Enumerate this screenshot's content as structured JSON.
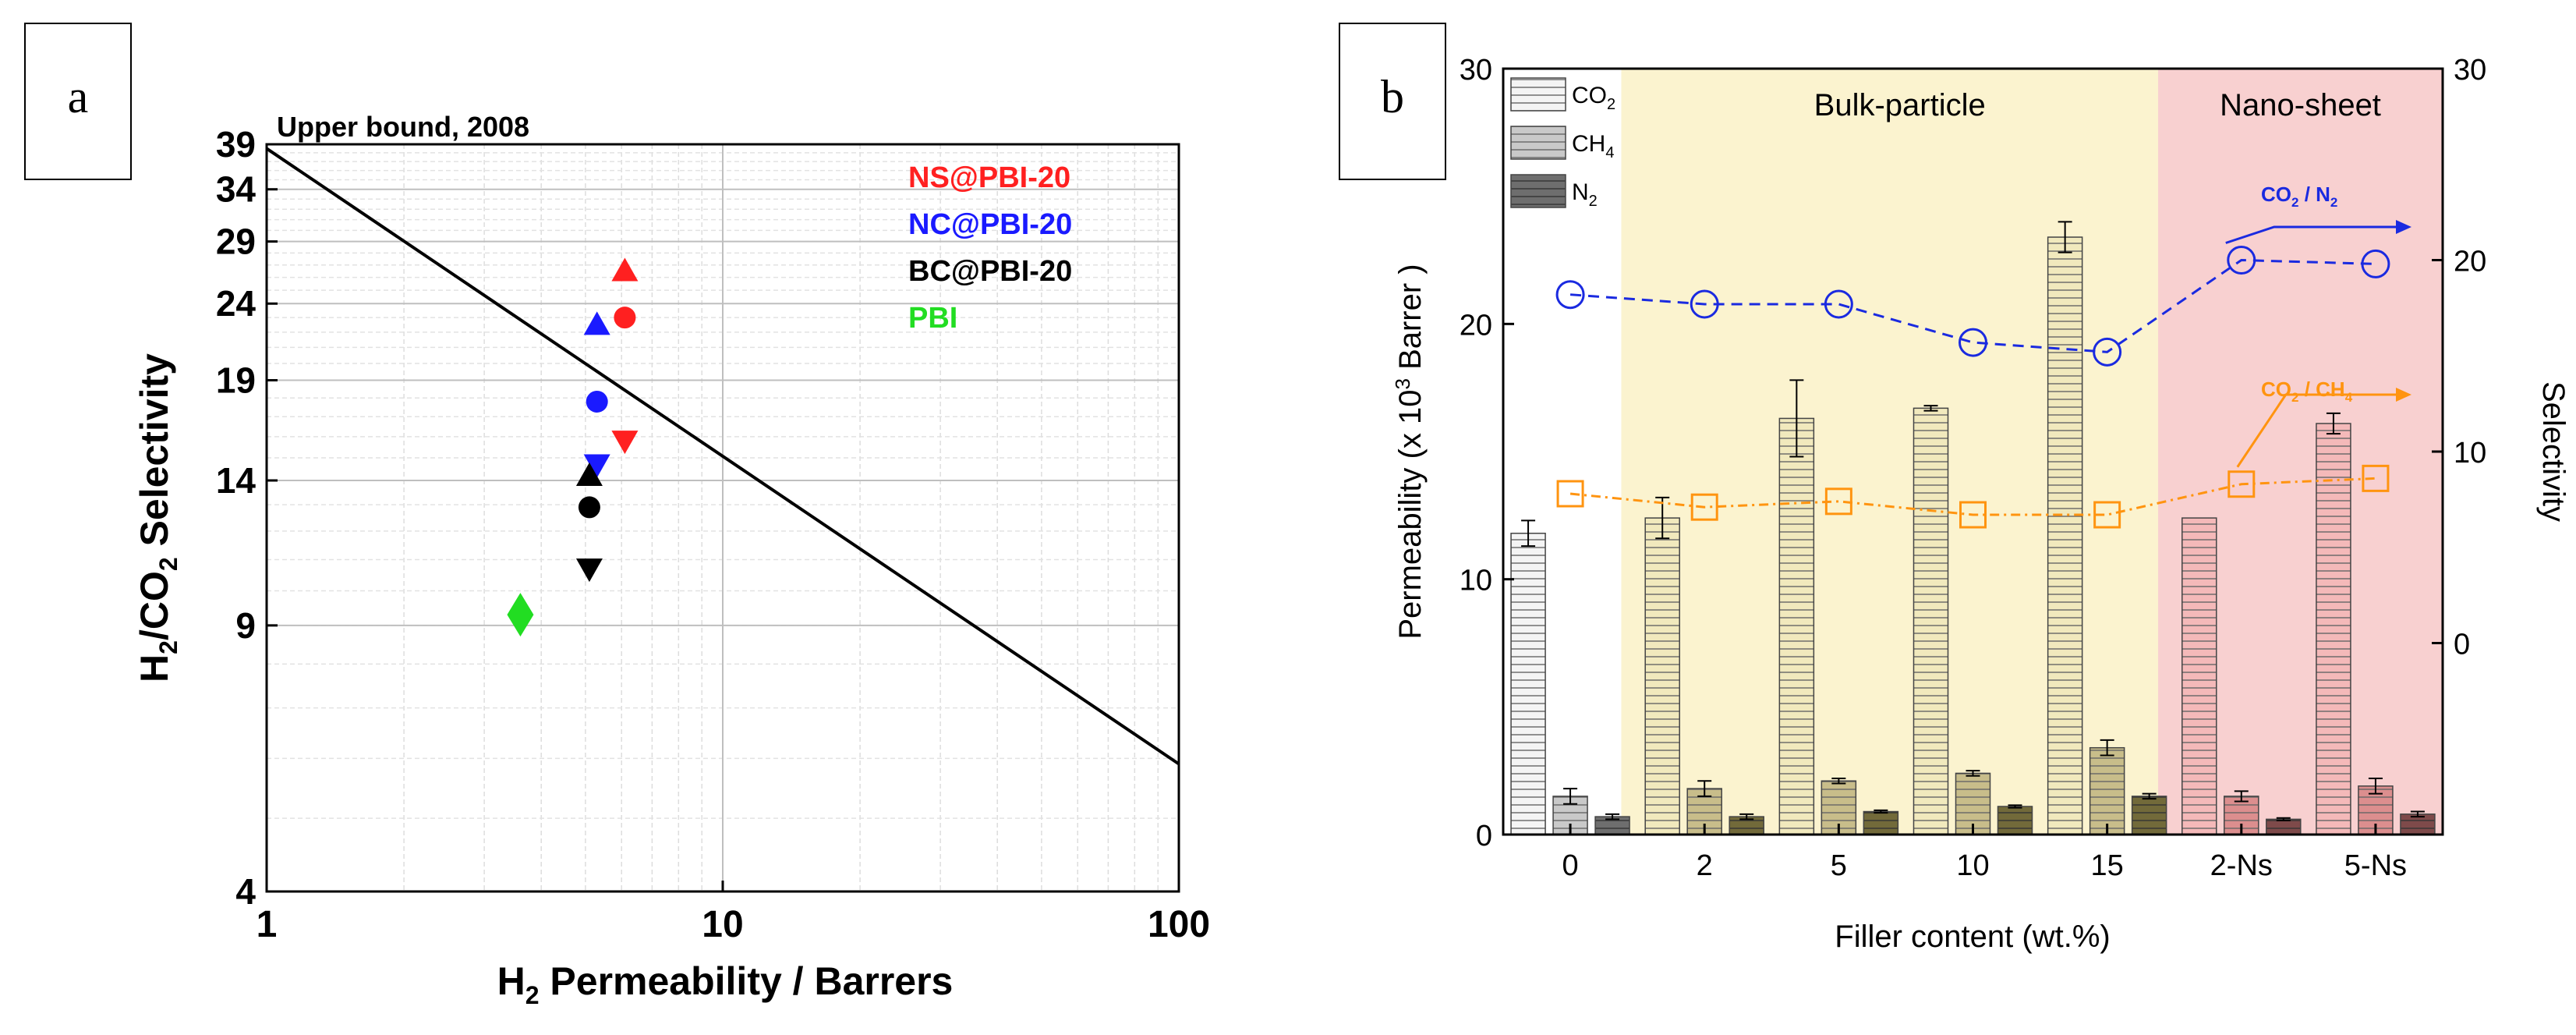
{
  "chart_data": [
    {
      "panel_label": "a",
      "type": "scatter",
      "xlabel_main": "H",
      "xlabel_sub": "2",
      "xlabel_rest": " Permeability / Barrers",
      "ylabel_h": "H",
      "ylabel_h_sub": "2",
      "ylabel_mid": "/CO",
      "ylabel_co_sub": "2",
      "ylabel_rest": " Selectivity",
      "x_scale": "log",
      "y_scale": "log",
      "xlim": [
        1,
        100
      ],
      "ylim": [
        4,
        39
      ],
      "x_ticks": [
        {
          "value": 1,
          "label": "1"
        },
        {
          "value": 10,
          "label": "10"
        },
        {
          "value": 100,
          "label": "100"
        }
      ],
      "y_ticks": [
        {
          "value": 4,
          "label": "4"
        },
        {
          "value": 9,
          "label": "9"
        },
        {
          "value": 14,
          "label": "14"
        },
        {
          "value": 19,
          "label": "19"
        },
        {
          "value": 24,
          "label": "24"
        },
        {
          "value": 29,
          "label": "29"
        },
        {
          "value": 34,
          "label": "34"
        },
        {
          "value": 39,
          "label": "39"
        }
      ],
      "grid": true,
      "upper_bound": {
        "label": "Upper bound, 2008",
        "x": [
          1,
          100
        ],
        "y": [
          38.5,
          5.9
        ]
      },
      "legend_position": "top-right",
      "series": [
        {
          "name": "NS@PBI-20",
          "color": "#ff2020",
          "points": [
            {
              "x": 6.1,
              "y": 26.5,
              "marker": "triangle-up"
            },
            {
              "x": 6.1,
              "y": 23.0,
              "marker": "circle"
            },
            {
              "x": 6.1,
              "y": 15.8,
              "marker": "triangle-down"
            }
          ]
        },
        {
          "name": "NC@PBI-20",
          "color": "#1a1aff",
          "points": [
            {
              "x": 5.3,
              "y": 22.5,
              "marker": "triangle-up"
            },
            {
              "x": 5.3,
              "y": 17.8,
              "marker": "circle"
            },
            {
              "x": 5.3,
              "y": 14.7,
              "marker": "triangle-down"
            }
          ]
        },
        {
          "name": "BC@PBI-20",
          "color": "#000000",
          "points": [
            {
              "x": 5.1,
              "y": 14.2,
              "marker": "triangle-up"
            },
            {
              "x": 5.1,
              "y": 12.9,
              "marker": "circle"
            },
            {
              "x": 5.1,
              "y": 10.7,
              "marker": "triangle-down"
            }
          ]
        },
        {
          "name": "PBI",
          "color": "#22dd22",
          "points": [
            {
              "x": 3.6,
              "y": 9.3,
              "marker": "diamond"
            }
          ]
        }
      ]
    },
    {
      "panel_label": "b",
      "type": "bar",
      "xlabel": "Filler content (wt.%)",
      "ylabel_left_a": "Permeability (x 10",
      "ylabel_left_sup": "3",
      "ylabel_left_b": " Barrer )",
      "ylabel_right": "Selectivity",
      "categories": [
        "0",
        "2",
        "5",
        "10",
        "15",
        "2-Ns",
        "5-Ns"
      ],
      "ylim_left": [
        0,
        30
      ],
      "yticks_left": [
        "0",
        "10",
        "20",
        "30"
      ],
      "ylim_right": [
        -10,
        30
      ],
      "yticks_right": [
        "0",
        "10",
        "20",
        "30"
      ],
      "regions": [
        {
          "label": "Bulk-particle",
          "color": "#fbf3cf",
          "from": 1,
          "to": 4
        },
        {
          "label": "Nano-sheet",
          "color": "#f8d0d0",
          "from": 5,
          "to": 6
        }
      ],
      "legend_position": "top-left",
      "legend": [
        {
          "label": "CO",
          "sub": "2"
        },
        {
          "label": "CH",
          "sub": "4"
        },
        {
          "label": "N",
          "sub": "2"
        }
      ],
      "series": [
        {
          "gas": "CO2",
          "values": [
            11.8,
            12.4,
            16.3,
            16.7,
            23.4,
            12.4,
            16.1
          ],
          "errors": [
            0.5,
            0.8,
            1.5,
            0.1,
            0.6,
            0.0,
            0.4
          ]
        },
        {
          "gas": "CH4",
          "values": [
            1.5,
            1.8,
            2.1,
            2.4,
            3.4,
            1.5,
            1.9
          ],
          "errors": [
            0.3,
            0.3,
            0.1,
            0.1,
            0.3,
            0.2,
            0.3
          ]
        },
        {
          "gas": "N2",
          "values": [
            0.7,
            0.7,
            0.9,
            1.1,
            1.5,
            0.6,
            0.8
          ],
          "errors": [
            0.1,
            0.1,
            0.05,
            0.05,
            0.1,
            0.05,
            0.1
          ]
        }
      ],
      "bar_colors": {
        "neutral": [
          "#f4f4f4",
          "#c9c9c9",
          "#6e6e6e"
        ],
        "bulk": [
          "#f1e9bd",
          "#c8bd8a",
          "#726a3a"
        ],
        "nano": [
          "#f4b9b9",
          "#dc8e8e",
          "#7e4a4a"
        ]
      },
      "selectivity_series": [
        {
          "name": "CO2 / N2",
          "name_main": "CO",
          "name_sub": "2",
          "name_rest": " / N",
          "name_sub2": "2",
          "color": "#1a2ae0",
          "marker": "circle",
          "values": [
            18.2,
            17.7,
            17.7,
            15.7,
            15.2,
            20.0,
            19.8
          ]
        },
        {
          "name": "CO2 / CH4",
          "name_main": "CO",
          "name_sub": "2",
          "name_rest": " / CH",
          "name_sub2": "4",
          "color": "#ff9410",
          "marker": "square",
          "values": [
            7.8,
            7.1,
            7.4,
            6.7,
            6.7,
            8.3,
            8.6
          ]
        }
      ]
    }
  ]
}
